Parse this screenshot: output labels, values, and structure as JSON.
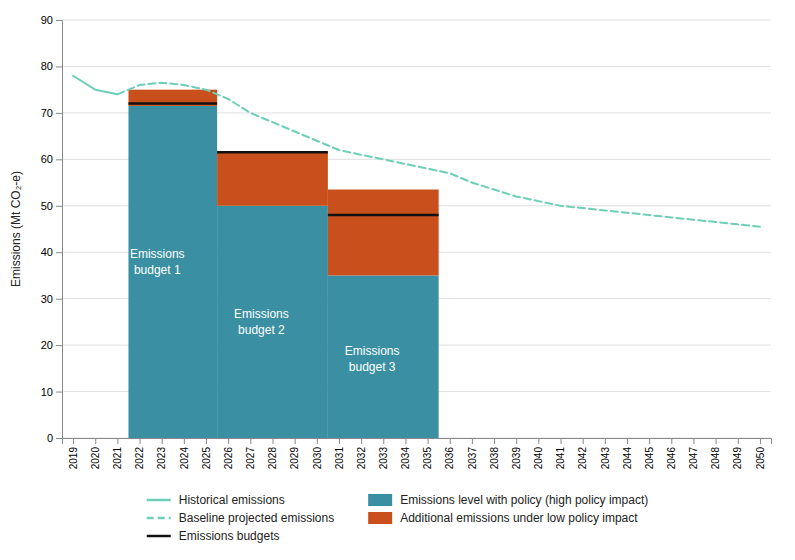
{
  "chart_data": {
    "type": "line",
    "ylabel": "Emissions (Mt CO₂-e)",
    "xlim": [
      2018.5,
      2050.5
    ],
    "xticks": [
      2019,
      2020,
      2021,
      2022,
      2023,
      2024,
      2025,
      2026,
      2027,
      2028,
      2029,
      2030,
      2031,
      2032,
      2033,
      2034,
      2035,
      2036,
      2037,
      2038,
      2039,
      2040,
      2041,
      2042,
      2043,
      2044,
      2045,
      2046,
      2047,
      2048,
      2049,
      2050
    ],
    "ylim": [
      0,
      90
    ],
    "yticks": [
      0,
      10,
      20,
      30,
      40,
      50,
      60,
      70,
      80,
      90
    ],
    "grid": "y",
    "legend": "bottom",
    "stacked": true,
    "series": [
      {
        "name": "Historical emissions",
        "type": "line",
        "line_style": "solid",
        "color": "#6ecfb8",
        "x": [
          2019,
          2020,
          2021
        ],
        "values": [
          78,
          75,
          74
        ]
      },
      {
        "name": "Baseline projected emissions",
        "type": "line",
        "line_style": "dashed",
        "color": "#6ecfb8",
        "x": [
          2021,
          2022,
          2023,
          2024,
          2025,
          2026,
          2027,
          2028,
          2029,
          2030,
          2031,
          2032,
          2033,
          2034,
          2035,
          2036,
          2037,
          2038,
          2039,
          2040,
          2041,
          2042,
          2043,
          2044,
          2045,
          2046,
          2047,
          2048,
          2049,
          2050
        ],
        "values": [
          74,
          76,
          76.5,
          76,
          75,
          73,
          70,
          68,
          66,
          64,
          62,
          61,
          60,
          59,
          58,
          57,
          55,
          53.5,
          52,
          51,
          50,
          49.5,
          49,
          48.5,
          48,
          47.5,
          47,
          46.5,
          46,
          45.5
        ]
      },
      {
        "name": "Emissions budgets",
        "type": "segment",
        "line_style": "solid",
        "color": "#111111",
        "x_start": [
          2021.5,
          2025.5,
          2030.5
        ],
        "x_end": [
          2025.5,
          2030.5,
          2035.5
        ],
        "values": [
          72.0,
          61.5,
          48.0
        ]
      },
      {
        "name": "Emissions level with policy (high policy impact)",
        "type": "bar",
        "color": "#3a8fa3",
        "x_start": [
          2021.5,
          2025.5,
          2030.5
        ],
        "x_end": [
          2025.5,
          2030.5,
          2035.5
        ],
        "values": [
          71.5,
          50.0,
          35.0
        ]
      },
      {
        "name": "Additional emissions under low policy impact",
        "type": "bar",
        "color": "#c9501c",
        "x_start": [
          2021.5,
          2025.5,
          2030.5
        ],
        "x_end": [
          2025.5,
          2030.5,
          2035.5
        ],
        "values": [
          3.5,
          11.5,
          18.5
        ]
      }
    ],
    "annotations": [
      {
        "text": "Emissions\nbudget 1",
        "x": 2022.8,
        "y": 38
      },
      {
        "text": "Emissions\nbudget 2",
        "x": 2027.5,
        "y": 25
      },
      {
        "text": "Emissions\nbudget 3",
        "x": 2032.5,
        "y": 17
      }
    ]
  }
}
